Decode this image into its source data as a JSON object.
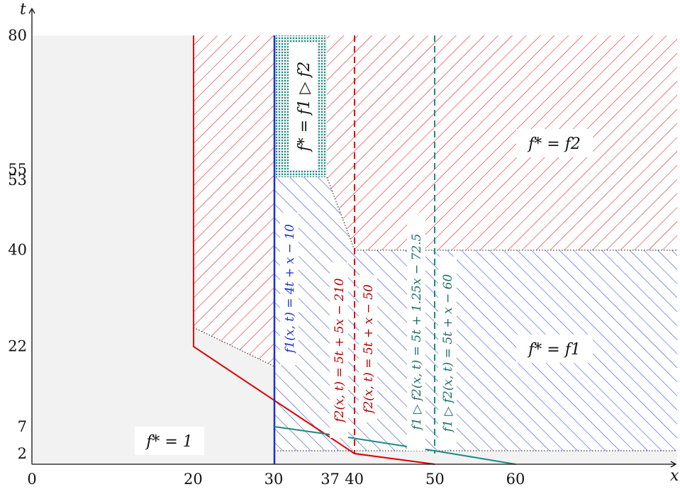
{
  "axes": {
    "x_name": "x",
    "y_name": "t",
    "x_ticks": [
      "0",
      "20",
      "30",
      "37",
      "40",
      "50",
      "60"
    ],
    "y_ticks": [
      "2",
      "7",
      "22",
      "40",
      "53",
      "55",
      "80"
    ],
    "x_tick_values": [
      0,
      20,
      30,
      37,
      40,
      50,
      60
    ],
    "y_tick_values": [
      2,
      7,
      22,
      40,
      53,
      55,
      80
    ],
    "xlim": [
      0,
      80
    ],
    "ylim": [
      0,
      80
    ]
  },
  "regions": {
    "one": "f* = 1",
    "f1": "f* = f1",
    "f2": "f* = f2",
    "f1f2": "f* = f1 ▷ f2"
  },
  "line_labels": {
    "blue": "f1(x, t) = 4t + x − 10",
    "red_solid": "f2(x, t) = 5t + 5x − 210",
    "red_dashed": "f2(x, t) = 5t + x − 50",
    "teal_left": "f1 ▷ f2(x, t) = 5t + 1.25x − 72.5",
    "teal_right": "f1 ▷ f2(x, t) = 5t + x − 60"
  },
  "colors": {
    "red": "#e00000",
    "blue": "#1a2fd6",
    "teal": "#1a8a82",
    "gray": "#f2f2f2"
  }
}
